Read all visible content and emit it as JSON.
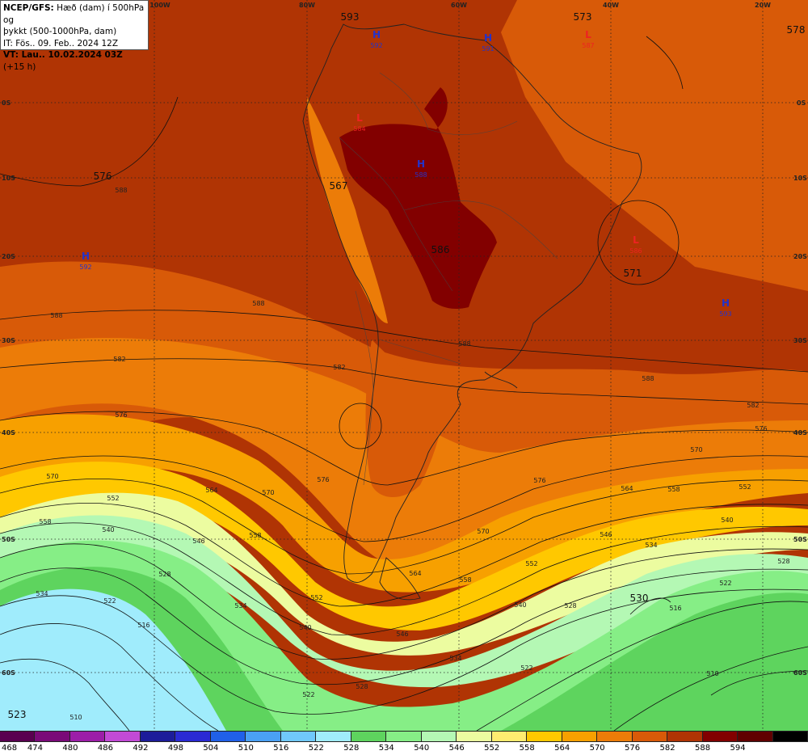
{
  "info": {
    "line1_bold": "NCEP/GFS:",
    "line1_rest": " Hæð (dam) í 500hPa og",
    "line2": "þykkt (500-1000hPa, dam)",
    "line3": "IT: Fös.. 09. Feb.. 2024 12Z",
    "line4_bold": "VT: Lau.. 10.02.2024 03Z",
    "line4_rest": " (+15 h)"
  },
  "lon_labels": [
    "100W",
    "80W",
    "60W",
    "40W",
    "20W"
  ],
  "lat_labels": [
    "0S",
    "10S",
    "20S",
    "30S",
    "40S",
    "50S",
    "60S"
  ],
  "legend": {
    "values": [
      "468",
      "474",
      "480",
      "486",
      "492",
      "498",
      "504",
      "510",
      "516",
      "522",
      "528",
      "534",
      "540",
      "546",
      "552",
      "558",
      "564",
      "570",
      "576",
      "582",
      "588",
      "594"
    ],
    "colors": [
      "#5a0050",
      "#7a0a78",
      "#9c1ea8",
      "#c24ad6",
      "#1c1c9a",
      "#2a2ad4",
      "#2060e8",
      "#4aa0f4",
      "#70c8fc",
      "#a0ecfc",
      "#5ed45e",
      "#86ee86",
      "#b4f8b4",
      "#ecfca0",
      "#ffec70",
      "#ffc800",
      "#f7a000",
      "#ec7c08",
      "#d85a08",
      "#b03404",
      "#820000",
      "#600000",
      "#000000"
    ]
  },
  "centers": [
    {
      "kind": "H",
      "value": "592",
      "color": "#2233cc"
    },
    {
      "kind": "H",
      "value": "591",
      "color": "#2233cc"
    },
    {
      "kind": "L",
      "value": "587",
      "color": "#ee2222"
    },
    {
      "kind": "L",
      "value": "584",
      "color": "#ee2222"
    },
    {
      "kind": "H",
      "value": "588",
      "color": "#2233cc"
    },
    {
      "kind": "H",
      "value": "592",
      "color": "#2233cc"
    },
    {
      "kind": "L",
      "value": "586",
      "color": "#ee2222"
    },
    {
      "kind": "H",
      "value": "593",
      "color": "#2233cc"
    }
  ],
  "center_values_text": [
    "593",
    "573",
    "578",
    "576",
    "567",
    "586",
    "571",
    "530",
    "523"
  ],
  "contour_labels": [
    "588",
    "588",
    "588",
    "588",
    "588",
    "582",
    "582",
    "582",
    "576",
    "576",
    "576",
    "570",
    "570",
    "570",
    "570",
    "564",
    "564",
    "564",
    "558",
    "558",
    "558",
    "552",
    "552",
    "552",
    "546",
    "546",
    "546",
    "540",
    "540",
    "540",
    "534",
    "534",
    "534",
    "528",
    "528",
    "528",
    "522",
    "522",
    "522",
    "516",
    "516",
    "510",
    "510"
  ]
}
